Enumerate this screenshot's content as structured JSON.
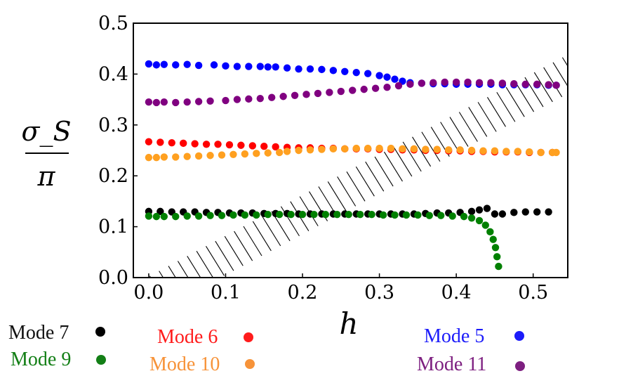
{
  "chart_data": {
    "type": "scatter",
    "title": "",
    "xlabel": "h",
    "ylabel_num": "σ_S",
    "ylabel_den": "π",
    "xlim": [
      -0.02,
      0.545
    ],
    "ylim": [
      0,
      0.5
    ],
    "xticks": [
      0.0,
      0.1,
      0.2,
      0.3,
      0.4,
      0.5
    ],
    "xtick_labels": [
      "0.0",
      "0.1",
      "0.2",
      "0.3",
      "0.4",
      "0.5"
    ],
    "yticks": [
      0.0,
      0.1,
      0.2,
      0.3,
      0.4,
      0.5
    ],
    "ytick_labels": [
      "0.0",
      "0.1",
      "0.2",
      "0.3",
      "0.4",
      "0.5"
    ],
    "hatched_region": {
      "description_boundary": "y = 0.8*h",
      "x_from": 0.0,
      "x_to": 0.545
    },
    "series": [
      {
        "name": "Mode 5",
        "color": "#0000ff",
        "x": [
          0.0,
          0.01,
          0.02,
          0.035,
          0.05,
          0.065,
          0.085,
          0.1,
          0.115,
          0.13,
          0.145,
          0.155,
          0.165,
          0.18,
          0.195,
          0.21,
          0.225,
          0.24,
          0.255,
          0.27,
          0.285,
          0.3,
          0.31,
          0.32,
          0.33,
          0.34,
          0.355,
          0.37,
          0.385,
          0.4,
          0.415,
          0.43,
          0.445,
          0.46,
          0.475,
          0.49,
          0.505,
          0.52,
          0.53
        ],
        "y": [
          0.42,
          0.418,
          0.419,
          0.418,
          0.419,
          0.417,
          0.418,
          0.416,
          0.415,
          0.415,
          0.415,
          0.414,
          0.414,
          0.412,
          0.41,
          0.41,
          0.409,
          0.407,
          0.405,
          0.403,
          0.401,
          0.397,
          0.394,
          0.39,
          0.386,
          0.383,
          0.382,
          0.381,
          0.381,
          0.38,
          0.38,
          0.38,
          0.38,
          0.379,
          0.379,
          0.379,
          0.379,
          0.378,
          0.378
        ]
      },
      {
        "name": "Mode 11",
        "color": "#800080",
        "x": [
          0.0,
          0.01,
          0.02,
          0.035,
          0.05,
          0.065,
          0.08,
          0.1,
          0.115,
          0.13,
          0.145,
          0.16,
          0.175,
          0.19,
          0.205,
          0.22,
          0.235,
          0.25,
          0.265,
          0.28,
          0.295,
          0.31,
          0.325,
          0.34,
          0.355,
          0.37,
          0.385,
          0.4,
          0.415,
          0.43,
          0.445,
          0.46,
          0.475,
          0.49,
          0.505,
          0.52,
          0.53
        ],
        "y": [
          0.345,
          0.344,
          0.345,
          0.344,
          0.345,
          0.346,
          0.347,
          0.348,
          0.35,
          0.351,
          0.352,
          0.354,
          0.356,
          0.358,
          0.36,
          0.362,
          0.364,
          0.366,
          0.368,
          0.37,
          0.372,
          0.374,
          0.377,
          0.38,
          0.382,
          0.383,
          0.384,
          0.384,
          0.384,
          0.383,
          0.383,
          0.382,
          0.381,
          0.38,
          0.38,
          0.379,
          0.378
        ]
      },
      {
        "name": "Mode 6",
        "color": "#ff0000",
        "x": [
          0.0,
          0.015,
          0.03,
          0.045,
          0.06,
          0.075,
          0.09,
          0.105,
          0.12,
          0.135,
          0.15,
          0.165,
          0.18,
          0.195,
          0.21,
          0.225,
          0.24,
          0.255,
          0.27,
          0.285,
          0.3,
          0.315,
          0.33,
          0.345,
          0.36,
          0.375,
          0.39,
          0.405,
          0.42,
          0.435,
          0.45,
          0.465,
          0.48,
          0.495,
          0.51,
          0.525
        ],
        "y": [
          0.267,
          0.266,
          0.265,
          0.264,
          0.263,
          0.262,
          0.262,
          0.261,
          0.26,
          0.259,
          0.258,
          0.257,
          0.256,
          0.255,
          0.255,
          0.254,
          0.254,
          0.253,
          0.253,
          0.253,
          0.252,
          0.252,
          0.251,
          0.251,
          0.25,
          0.25,
          0.249,
          0.249,
          0.248,
          0.248,
          0.247,
          0.247,
          0.247,
          0.246,
          0.246,
          0.246
        ]
      },
      {
        "name": "Mode 10",
        "color": "#ffa020",
        "x": [
          0.0,
          0.01,
          0.02,
          0.035,
          0.05,
          0.065,
          0.08,
          0.095,
          0.11,
          0.125,
          0.14,
          0.155,
          0.17,
          0.18,
          0.195,
          0.21,
          0.225,
          0.24,
          0.255,
          0.27,
          0.285,
          0.3,
          0.315,
          0.33,
          0.345,
          0.36,
          0.375,
          0.39,
          0.405,
          0.42,
          0.435,
          0.45,
          0.465,
          0.48,
          0.495,
          0.51,
          0.525,
          0.53
        ],
        "y": [
          0.236,
          0.236,
          0.237,
          0.237,
          0.238,
          0.239,
          0.24,
          0.241,
          0.242,
          0.243,
          0.244,
          0.245,
          0.246,
          0.248,
          0.25,
          0.251,
          0.252,
          0.253,
          0.253,
          0.254,
          0.254,
          0.254,
          0.254,
          0.253,
          0.253,
          0.252,
          0.252,
          0.251,
          0.251,
          0.25,
          0.249,
          0.249,
          0.248,
          0.248,
          0.247,
          0.246,
          0.246,
          0.246
        ]
      },
      {
        "name": "Mode 7",
        "color": "#000000",
        "x": [
          0.0,
          0.015,
          0.03,
          0.045,
          0.06,
          0.075,
          0.09,
          0.105,
          0.12,
          0.135,
          0.15,
          0.165,
          0.18,
          0.195,
          0.21,
          0.225,
          0.24,
          0.255,
          0.27,
          0.285,
          0.3,
          0.315,
          0.33,
          0.345,
          0.36,
          0.375,
          0.39,
          0.405,
          0.42,
          0.43,
          0.44,
          0.45,
          0.46,
          0.475,
          0.49,
          0.505,
          0.52
        ],
        "y": [
          0.13,
          0.13,
          0.129,
          0.129,
          0.129,
          0.128,
          0.128,
          0.127,
          0.127,
          0.127,
          0.126,
          0.126,
          0.126,
          0.125,
          0.125,
          0.125,
          0.125,
          0.125,
          0.125,
          0.125,
          0.125,
          0.125,
          0.125,
          0.125,
          0.126,
          0.127,
          0.127,
          0.128,
          0.13,
          0.133,
          0.136,
          0.125,
          0.125,
          0.128,
          0.129,
          0.129,
          0.129
        ]
      },
      {
        "name": "Mode 9",
        "color": "#008000",
        "x": [
          0.0,
          0.01,
          0.02,
          0.035,
          0.05,
          0.065,
          0.08,
          0.095,
          0.11,
          0.125,
          0.14,
          0.155,
          0.17,
          0.185,
          0.2,
          0.215,
          0.23,
          0.245,
          0.26,
          0.275,
          0.29,
          0.305,
          0.32,
          0.335,
          0.35,
          0.365,
          0.38,
          0.395,
          0.41,
          0.42,
          0.43,
          0.438,
          0.444,
          0.448,
          0.451,
          0.453,
          0.455
        ],
        "y": [
          0.121,
          0.12,
          0.12,
          0.12,
          0.121,
          0.121,
          0.122,
          0.122,
          0.123,
          0.123,
          0.123,
          0.124,
          0.124,
          0.124,
          0.124,
          0.124,
          0.124,
          0.124,
          0.124,
          0.124,
          0.124,
          0.123,
          0.123,
          0.123,
          0.123,
          0.122,
          0.122,
          0.121,
          0.12,
          0.117,
          0.112,
          0.103,
          0.09,
          0.075,
          0.059,
          0.041,
          0.022
        ]
      }
    ]
  },
  "legend": [
    {
      "text": "Mode 7",
      "color": "#111111",
      "dot": "#000000"
    },
    {
      "text": "Mode 9",
      "color": "#137f16",
      "dot": "#137f16"
    },
    {
      "text": "Mode 6",
      "color": "#ff1c1c",
      "dot": "#ff1c1c"
    },
    {
      "text": "Mode 10",
      "color": "#f79339",
      "dot": "#f79339"
    },
    {
      "text": "Mode 5",
      "color": "#1c1cfa",
      "dot": "#1c1cfa"
    },
    {
      "text": "Mode 11",
      "color": "#7d1f80",
      "dot": "#7d1f80"
    }
  ]
}
